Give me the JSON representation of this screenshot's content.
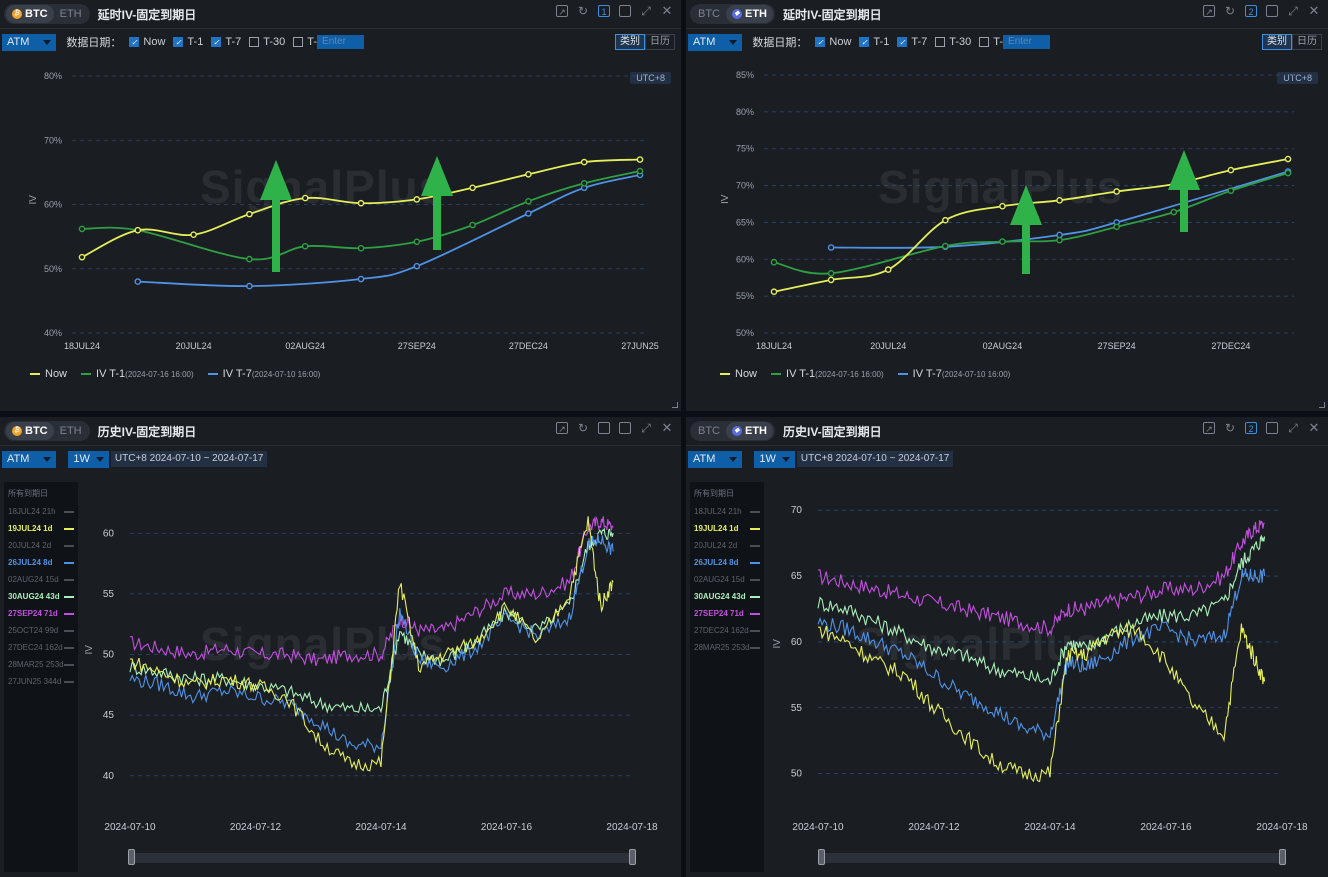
{
  "common": {
    "btc": "BTC",
    "eth": "ETH",
    "atm": "ATM",
    "data_date_label": "数据日期：",
    "checkbox_now": "Now",
    "checkbox_t1": "T-1",
    "checkbox_t7": "T-7",
    "checkbox_t30": "T-30",
    "checkbox_t": "T-",
    "enter_placeholder": "Enter",
    "toggle_category": "类别",
    "toggle_calendar": "日历",
    "utc_badge": "UTC+8",
    "watermark": "SignalPlus",
    "period": "1W",
    "expiry_header": "所有到期日",
    "legend_now": "Now",
    "legend_t1": "IV T-1",
    "legend_t1_date": "(2024-07-16 16:00)",
    "legend_t7": "IV T-7",
    "legend_t7_date": "(2024-07-10 16:00)"
  },
  "panels": {
    "p1": {
      "title": "延时IV-固定到期日",
      "tab_num": "1"
    },
    "p2": {
      "title": "延时IV-固定到期日",
      "tab_num": "2"
    },
    "p3": {
      "title": "历史IV-固定到期日",
      "range": "UTC+8 2024-07-10 ~ 2024-07-17"
    },
    "p4": {
      "title": "历史IV-固定到期日",
      "tab_num": "2",
      "range": "UTC+8 2024-07-10 ~ 2024-07-17"
    }
  },
  "expiries_btc": [
    {
      "label": "18JUL24 21h",
      "active": false,
      "color": "#5e646e"
    },
    {
      "label": "19JUL24 1d",
      "active": true,
      "color": "#e6ef5a"
    },
    {
      "label": "20JUL24 2d",
      "active": false,
      "color": "#5e646e"
    },
    {
      "label": "26JUL24 8d",
      "active": true,
      "color": "#4f93e6"
    },
    {
      "label": "02AUG24 15d",
      "active": false,
      "color": "#5e646e"
    },
    {
      "label": "30AUG24 43d",
      "active": true,
      "color": "#a9f0b8"
    },
    {
      "label": "27SEP24 71d",
      "active": true,
      "color": "#c34fe0"
    },
    {
      "label": "25OCT24 99d",
      "active": false,
      "color": "#5e646e"
    },
    {
      "label": "27DEC24 162d",
      "active": false,
      "color": "#5e646e"
    },
    {
      "label": "28MAR25 253d",
      "active": false,
      "color": "#5e646e"
    },
    {
      "label": "27JUN25 344d",
      "active": false,
      "color": "#5e646e"
    }
  ],
  "expiries_eth": [
    {
      "label": "18JUL24 21h",
      "active": false,
      "color": "#5e646e"
    },
    {
      "label": "19JUL24 1d",
      "active": true,
      "color": "#e6ef5a"
    },
    {
      "label": "20JUL24 2d",
      "active": false,
      "color": "#5e646e"
    },
    {
      "label": "26JUL24 8d",
      "active": true,
      "color": "#4f93e6"
    },
    {
      "label": "02AUG24 15d",
      "active": false,
      "color": "#5e646e"
    },
    {
      "label": "30AUG24 43d",
      "active": true,
      "color": "#a9f0b8"
    },
    {
      "label": "27SEP24 71d",
      "active": true,
      "color": "#c34fe0"
    },
    {
      "label": "27DEC24 162d",
      "active": false,
      "color": "#5e646e"
    },
    {
      "label": "28MAR25 253d",
      "active": false,
      "color": "#5e646e"
    }
  ],
  "chart_data": [
    {
      "type": "line",
      "panel": "p1",
      "ylabel": "IV",
      "ylim": [
        40,
        80
      ],
      "yticks": [
        40,
        50,
        60,
        70,
        80
      ],
      "tick_suffix": "%",
      "categories": [
        "18JUL24",
        "19JUL24",
        "20JUL24",
        "26JUL24",
        "02AUG24",
        "30AUG24",
        "27SEP24",
        "25OCT24",
        "27DEC24",
        "28MAR25",
        "27JUN25"
      ],
      "xtick_labels": [
        "18JUL24",
        "20JUL24",
        "02AUG24",
        "27SEP24",
        "27DEC24",
        "27JUN25"
      ],
      "colors": {
        "now": "#e6ef5a",
        "t1": "#2ea043",
        "t7": "#4f93e6"
      },
      "series": [
        {
          "name": "Now",
          "values": [
            51.8,
            56.0,
            55.3,
            58.5,
            61.0,
            60.2,
            60.8,
            62.6,
            64.7,
            66.6,
            67.0
          ]
        },
        {
          "name": "IV T-1",
          "values": [
            56.2,
            56.0,
            null,
            51.5,
            53.5,
            53.2,
            54.2,
            56.8,
            60.5,
            63.3,
            65.2
          ]
        },
        {
          "name": "IV T-7",
          "values": [
            null,
            48.0,
            null,
            47.3,
            null,
            48.4,
            50.4,
            null,
            58.6,
            62.6,
            64.6
          ]
        }
      ]
    },
    {
      "type": "line",
      "panel": "p2",
      "ylabel": "IV",
      "ylim": [
        50,
        85
      ],
      "yticks": [
        50,
        55,
        60,
        65,
        70,
        75,
        80,
        85
      ],
      "tick_suffix": "%",
      "categories": [
        "18JUL24",
        "19JUL24",
        "20JUL24",
        "26JUL24",
        "02AUG24",
        "30AUG24",
        "27SEP24",
        "25OCT24",
        "27DEC24",
        "28MAR25"
      ],
      "xtick_labels": [
        "18JUL24",
        "20JUL24",
        "02AUG24",
        "27SEP24",
        "27DEC24"
      ],
      "colors": {
        "now": "#e6ef5a",
        "t1": "#2ea043",
        "t7": "#4f93e6"
      },
      "series": [
        {
          "name": "Now",
          "values": [
            55.6,
            57.2,
            58.6,
            65.3,
            67.2,
            68.0,
            69.2,
            70.2,
            72.1,
            73.6
          ]
        },
        {
          "name": "IV T-1",
          "values": [
            59.6,
            58.1,
            null,
            61.8,
            62.4,
            62.6,
            64.4,
            66.4,
            69.3,
            71.7
          ]
        },
        {
          "name": "IV T-7",
          "values": [
            null,
            61.6,
            null,
            61.7,
            null,
            63.3,
            65.0,
            null,
            null,
            71.9
          ]
        }
      ]
    },
    {
      "type": "line",
      "panel": "p3",
      "ylabel": "IV",
      "ylim": [
        38,
        62
      ],
      "yticks": [
        40,
        45,
        50,
        55,
        60
      ],
      "xlim": [
        0,
        8
      ],
      "xtick_labels": [
        "2024-07-10",
        "2024-07-12",
        "2024-07-14",
        "2024-07-16",
        "2024-07-18"
      ],
      "series": [
        {
          "name": "19JUL24 1d",
          "color": "#e6ef5a",
          "x": [
            0,
            0.5,
            1,
            1.5,
            2,
            2.5,
            3,
            3.5,
            4,
            4.3,
            4.6,
            5,
            5.5,
            6,
            6.5,
            7,
            7.3,
            7.5,
            7.7
          ],
          "values": [
            49.5,
            48.5,
            47.5,
            48.0,
            47.5,
            46.5,
            43.0,
            41.0,
            41.0,
            56.0,
            49.0,
            50.0,
            51.0,
            54.0,
            51.0,
            55.0,
            61.0,
            54.0,
            56.0
          ]
        },
        {
          "name": "26JUL24 8d",
          "color": "#4f93e6",
          "x": [
            0,
            0.5,
            1,
            1.5,
            2,
            2.5,
            3,
            3.5,
            4,
            4.3,
            4.6,
            5,
            5.5,
            6,
            6.5,
            7,
            7.3,
            7.5,
            7.7
          ],
          "values": [
            48.0,
            47.5,
            46.5,
            47.0,
            46.5,
            46.0,
            44.5,
            42.5,
            42.5,
            53.5,
            49.5,
            49.0,
            50.5,
            53.0,
            51.5,
            53.0,
            59.0,
            59.5,
            58.5
          ]
        },
        {
          "name": "30AUG24 43d",
          "color": "#a9f0b8",
          "x": [
            0,
            0.5,
            1,
            1.5,
            2,
            2.5,
            3,
            3.5,
            4,
            4.3,
            4.6,
            5,
            5.5,
            6,
            6.5,
            7,
            7.3,
            7.5,
            7.7
          ],
          "values": [
            49.0,
            48.5,
            48.0,
            48.0,
            47.5,
            47.0,
            46.0,
            45.5,
            45.5,
            52.0,
            50.0,
            49.5,
            51.0,
            53.5,
            52.0,
            54.0,
            59.0,
            60.0,
            60.0
          ]
        },
        {
          "name": "27SEP24 71d",
          "color": "#c34fe0",
          "x": [
            0,
            0.5,
            1,
            1.5,
            2,
            2.5,
            3,
            3.5,
            4,
            4.3,
            4.6,
            5,
            5.5,
            6,
            6.5,
            7,
            7.3,
            7.5,
            7.7
          ],
          "values": [
            51.0,
            50.5,
            50.0,
            50.5,
            50.0,
            50.0,
            49.5,
            50.0,
            50.0,
            53.0,
            52.0,
            52.0,
            53.5,
            55.0,
            55.0,
            56.0,
            60.5,
            61.0,
            60.5
          ]
        }
      ]
    },
    {
      "type": "line",
      "panel": "p4",
      "ylabel": "IV",
      "ylim": [
        48,
        71
      ],
      "yticks": [
        50,
        55,
        60,
        65,
        70
      ],
      "xlim": [
        0,
        8
      ],
      "xtick_labels": [
        "2024-07-10",
        "2024-07-12",
        "2024-07-14",
        "2024-07-16",
        "2024-07-18"
      ],
      "series": [
        {
          "name": "19JUL24 1d",
          "color": "#e6ef5a",
          "x": [
            0,
            0.5,
            1,
            1.5,
            2,
            2.5,
            3,
            3.5,
            4,
            4.3,
            4.6,
            5,
            5.5,
            6,
            6.5,
            7,
            7.3,
            7.5,
            7.7
          ],
          "values": [
            61.0,
            60.0,
            58.5,
            57.5,
            55.0,
            53.0,
            51.0,
            50.0,
            50.0,
            59.0,
            59.0,
            60.5,
            61.0,
            58.5,
            55.0,
            53.0,
            61.0,
            59.0,
            57.0
          ]
        },
        {
          "name": "26JUL24 8d",
          "color": "#4f93e6",
          "x": [
            0,
            0.5,
            1,
            1.5,
            2,
            2.5,
            3,
            3.5,
            4,
            4.3,
            4.6,
            5,
            5.5,
            6,
            6.5,
            7,
            7.3,
            7.5,
            7.7
          ],
          "values": [
            61.5,
            61.0,
            60.0,
            59.0,
            57.5,
            56.0,
            55.0,
            53.5,
            53.0,
            58.5,
            58.0,
            59.0,
            60.5,
            61.0,
            60.0,
            60.5,
            65.0,
            65.0,
            65.0
          ]
        },
        {
          "name": "30AUG24 43d",
          "color": "#a9f0b8",
          "x": [
            0,
            0.5,
            1,
            1.5,
            2,
            2.5,
            3,
            3.5,
            4,
            4.3,
            4.6,
            5,
            5.5,
            6,
            6.5,
            7,
            7.3,
            7.5,
            7.7
          ],
          "values": [
            63.0,
            62.5,
            61.5,
            60.5,
            59.5,
            59.0,
            58.0,
            57.5,
            57.0,
            60.0,
            59.5,
            60.5,
            61.5,
            62.0,
            62.0,
            63.0,
            66.0,
            67.0,
            68.0
          ]
        },
        {
          "name": "27SEP24 71d",
          "color": "#c34fe0",
          "x": [
            0,
            0.5,
            1,
            1.5,
            2,
            2.5,
            3,
            3.5,
            4,
            4.3,
            4.6,
            5,
            5.5,
            6,
            6.5,
            7,
            7.3,
            7.5,
            7.7
          ],
          "values": [
            65.0,
            64.5,
            64.0,
            63.5,
            63.0,
            62.5,
            62.0,
            61.5,
            61.0,
            62.5,
            62.5,
            63.0,
            63.5,
            64.0,
            64.0,
            65.0,
            67.5,
            68.5,
            69.0
          ]
        }
      ]
    }
  ]
}
